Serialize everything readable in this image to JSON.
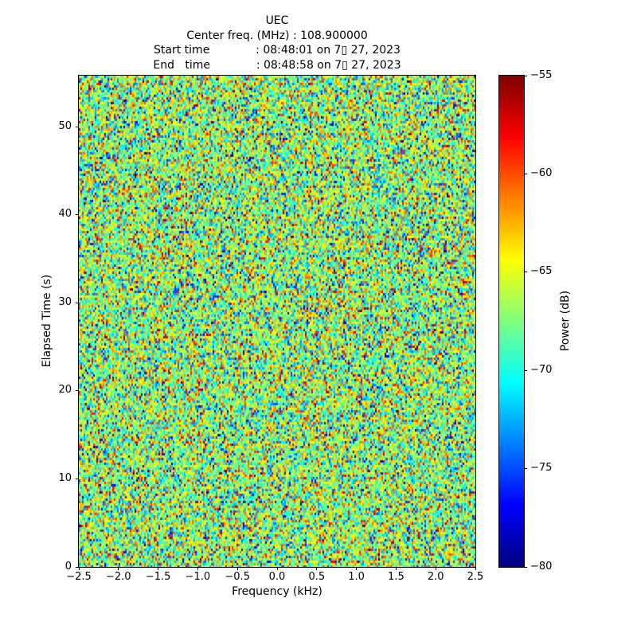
{
  "figure": {
    "background_color": "#ffffff",
    "text_color": "#000000"
  },
  "chart_data": {
    "type": "heatmap",
    "title": "UEC",
    "subtitle_lines": [
      "Center freq. (MHz) : 108.900000",
      "Start time             : 08:48:01 on 7▯ 27, 2023",
      "End   time             : 08:48:58 on 7▯ 27, 2023"
    ],
    "xlabel": "Frequency (kHz)",
    "ylabel": "Elapsed Time (s)",
    "xlim": [
      -2.5,
      2.5
    ],
    "ylim": [
      0,
      55.8
    ],
    "xticks": {
      "values": [
        -2.5,
        -2.0,
        -1.5,
        -1.0,
        -0.5,
        0.0,
        0.5,
        1.0,
        1.5,
        2.0,
        2.5
      ],
      "labels": [
        "−2.5",
        "−2.0",
        "−1.5",
        "−1.0",
        "−0.5",
        "0.0",
        "0.5",
        "1.0",
        "1.5",
        "2.0",
        "2.5"
      ]
    },
    "yticks": {
      "values": [
        0,
        10,
        20,
        30,
        40,
        50
      ],
      "labels": [
        "0",
        "10",
        "20",
        "30",
        "40",
        "50"
      ]
    },
    "colorbar": {
      "label": "Power (dB)",
      "vmin": -80,
      "vmax": -55,
      "colormap": "jet",
      "tick_values": [
        -55,
        -60,
        -65,
        -70,
        -75,
        -80
      ],
      "tick_labels": [
        "−55",
        "−60",
        "−65",
        "−70",
        "−75",
        "−80"
      ]
    },
    "data_description": "Spectrogram of wideband random noise; power values fluctuate randomly around −67 dB across all frequencies and times with no visible signal features.",
    "noise_model": {
      "distribution": "gaussian",
      "mean_db": -67.0,
      "std_db": 4.5,
      "clip_db": [
        -80,
        -55
      ],
      "seed": 20230727,
      "cols": 249,
      "rows": 206
    }
  }
}
